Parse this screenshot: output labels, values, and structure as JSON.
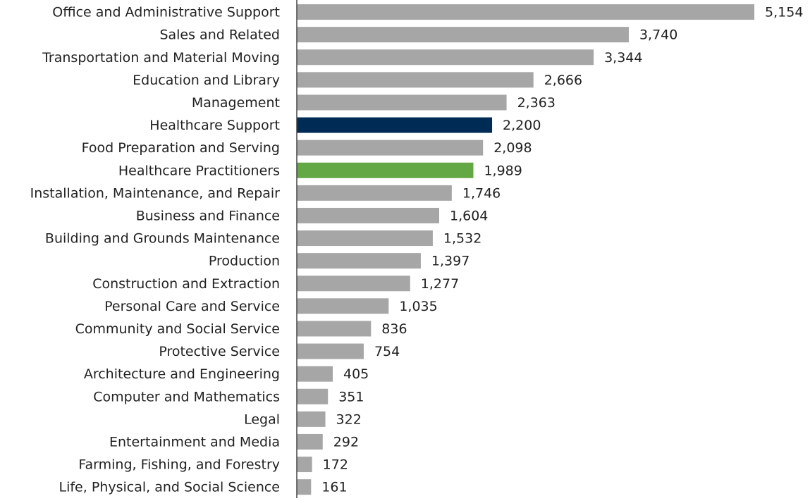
{
  "chart_data": {
    "type": "bar",
    "orientation": "horizontal",
    "categories": [
      "Office and Administrative Support",
      "Sales and Related",
      "Transportation and Material Moving",
      "Education and Library",
      "Management",
      "Healthcare Support",
      "Food Preparation and Serving",
      "Healthcare Practitioners",
      "Installation, Maintenance, and Repair",
      "Business and Finance",
      "Building and Grounds Maintenance",
      "Production",
      "Construction and Extraction",
      "Personal Care and Service",
      "Community and Social Service",
      "Protective Service",
      "Architecture and Engineering",
      "Computer and Mathematics",
      "Legal",
      "Entertainment and Media",
      "Farming, Fishing, and Forestry",
      "Life, Physical, and Social Science"
    ],
    "values": [
      5154,
      3740,
      3344,
      2666,
      2363,
      2200,
      2098,
      1989,
      1746,
      1604,
      1532,
      1397,
      1277,
      1035,
      836,
      754,
      405,
      351,
      322,
      292,
      172,
      161
    ],
    "value_labels": [
      "5,154",
      "3,740",
      "3,344",
      "2,666",
      "2,363",
      "2,200",
      "2,098",
      "1,989",
      "1,746",
      "1,604",
      "1,532",
      "1,397",
      "1,277",
      "1,035",
      "836",
      "754",
      "405",
      "351",
      "322",
      "292",
      "172",
      "161"
    ],
    "colors": [
      "#a6a6a6",
      "#a6a6a6",
      "#a6a6a6",
      "#a6a6a6",
      "#a6a6a6",
      "#002b55",
      "#a6a6a6",
      "#63a844",
      "#a6a6a6",
      "#a6a6a6",
      "#a6a6a6",
      "#a6a6a6",
      "#a6a6a6",
      "#a6a6a6",
      "#a6a6a6",
      "#a6a6a6",
      "#a6a6a6",
      "#a6a6a6",
      "#a6a6a6",
      "#a6a6a6",
      "#a6a6a6",
      "#a6a6a6"
    ],
    "xlim": [
      0,
      5500
    ]
  }
}
